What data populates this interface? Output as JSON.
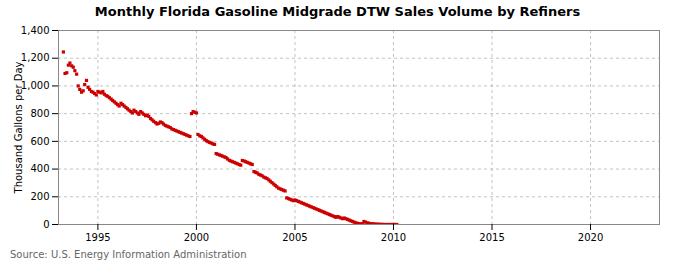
{
  "chart_data": {
    "type": "scatter",
    "title": "Monthly Florida Gasoline Midgrade DTW Sales Volume by Refiners",
    "ylabel": "Thousand Gallons per Day",
    "source": "Source: U.S. Energy Information Administration",
    "color": "#cc0000",
    "marker": "square",
    "grid": true,
    "xlim": [
      1993.0,
      2023.5
    ],
    "xticks": [
      1995,
      2000,
      2005,
      2010,
      2015,
      2020
    ],
    "ylim": [
      0,
      1400
    ],
    "yticks": [
      0,
      200,
      400,
      600,
      800,
      {
        "value": 1000,
        "label": "1,000"
      },
      {
        "value": 1200,
        "label": "1,200"
      },
      {
        "value": 1400,
        "label": "1,400"
      }
    ],
    "x": [
      1993.25,
      1993.33,
      1993.42,
      1993.5,
      1993.58,
      1993.67,
      1993.75,
      1993.83,
      1993.92,
      1994.0,
      1994.08,
      1994.17,
      1994.25,
      1994.33,
      1994.42,
      1994.5,
      1994.58,
      1994.67,
      1994.75,
      1994.83,
      1994.92,
      1995.0,
      1995.08,
      1995.17,
      1995.25,
      1995.33,
      1995.42,
      1995.5,
      1995.58,
      1995.67,
      1995.75,
      1995.83,
      1995.92,
      1996.0,
      1996.08,
      1996.17,
      1996.25,
      1996.33,
      1996.42,
      1996.5,
      1996.58,
      1996.67,
      1996.75,
      1996.83,
      1996.92,
      1997.0,
      1997.08,
      1997.17,
      1997.25,
      1997.33,
      1997.42,
      1997.5,
      1997.58,
      1997.67,
      1997.75,
      1997.83,
      1997.92,
      1998.0,
      1998.08,
      1998.17,
      1998.25,
      1998.33,
      1998.42,
      1998.5,
      1998.58,
      1998.67,
      1998.75,
      1998.83,
      1998.92,
      1999.0,
      1999.08,
      1999.17,
      1999.25,
      1999.33,
      1999.42,
      1999.5,
      1999.58,
      1999.67,
      1999.75,
      1999.83,
      1999.92,
      2000.0,
      2000.08,
      2000.17,
      2000.25,
      2000.33,
      2000.42,
      2000.5,
      2000.58,
      2000.67,
      2000.75,
      2000.83,
      2000.92,
      2001.0,
      2001.08,
      2001.17,
      2001.25,
      2001.33,
      2001.42,
      2001.5,
      2001.58,
      2001.67,
      2001.75,
      2001.83,
      2001.92,
      2002.0,
      2002.08,
      2002.17,
      2002.25,
      2002.33,
      2002.42,
      2002.5,
      2002.58,
      2002.67,
      2002.75,
      2002.83,
      2002.92,
      2003.0,
      2003.08,
      2003.17,
      2003.25,
      2003.33,
      2003.42,
      2003.5,
      2003.58,
      2003.67,
      2003.75,
      2003.83,
      2003.92,
      2004.0,
      2004.08,
      2004.17,
      2004.25,
      2004.33,
      2004.42,
      2004.5,
      2004.58,
      2004.67,
      2004.75,
      2004.83,
      2004.92,
      2005.0,
      2005.08,
      2005.17,
      2005.25,
      2005.33,
      2005.42,
      2005.5,
      2005.58,
      2005.67,
      2005.75,
      2005.83,
      2005.92,
      2006.0,
      2006.08,
      2006.17,
      2006.25,
      2006.33,
      2006.42,
      2006.5,
      2006.58,
      2006.67,
      2006.75,
      2006.83,
      2006.92,
      2007.0,
      2007.08,
      2007.17,
      2007.25,
      2007.33,
      2007.42,
      2007.5,
      2007.58,
      2007.67,
      2007.75,
      2007.83,
      2007.92,
      2008.0,
      2008.08,
      2008.17,
      2008.25,
      2008.33,
      2008.42,
      2008.5,
      2008.58,
      2008.67,
      2008.75,
      2008.83,
      2008.92,
      2009.0,
      2009.08,
      2009.17,
      2009.25,
      2009.33,
      2009.42,
      2009.5,
      2009.58,
      2009.67,
      2009.75,
      2009.83,
      2009.92,
      2010.0,
      2010.08,
      2010.17
    ],
    "values": [
      1245,
      1090,
      1095,
      1150,
      1165,
      1145,
      1135,
      1110,
      1085,
      1000,
      975,
      955,
      965,
      1010,
      1040,
      990,
      975,
      960,
      955,
      945,
      935,
      960,
      955,
      950,
      960,
      940,
      930,
      925,
      915,
      905,
      895,
      885,
      875,
      865,
      855,
      875,
      865,
      855,
      845,
      835,
      825,
      815,
      805,
      825,
      815,
      805,
      795,
      815,
      805,
      795,
      785,
      790,
      780,
      765,
      755,
      745,
      735,
      725,
      730,
      740,
      735,
      725,
      715,
      710,
      705,
      700,
      690,
      685,
      680,
      675,
      670,
      665,
      660,
      655,
      650,
      645,
      640,
      635,
      800,
      815,
      810,
      805,
      650,
      640,
      635,
      625,
      615,
      605,
      598,
      592,
      588,
      582,
      578,
      512,
      507,
      502,
      498,
      493,
      488,
      483,
      473,
      463,
      458,
      453,
      448,
      443,
      438,
      433,
      428,
      462,
      458,
      453,
      448,
      443,
      438,
      433,
      382,
      377,
      372,
      362,
      357,
      352,
      342,
      337,
      332,
      322,
      312,
      302,
      292,
      282,
      272,
      262,
      257,
      252,
      247,
      242,
      192,
      187,
      182,
      177,
      172,
      177,
      172,
      167,
      162,
      157,
      152,
      147,
      142,
      137,
      132,
      127,
      122,
      117,
      112,
      107,
      102,
      97,
      92,
      87,
      82,
      77,
      72,
      67,
      62,
      57,
      52,
      57,
      52,
      47,
      42,
      47,
      42,
      37,
      32,
      27,
      22,
      17,
      12,
      9,
      6,
      5,
      4,
      22,
      17,
      12,
      9,
      6,
      5,
      4,
      3,
      2,
      2,
      1,
      1,
      0,
      0,
      0,
      0,
      0,
      0,
      0,
      0,
      0
    ]
  }
}
